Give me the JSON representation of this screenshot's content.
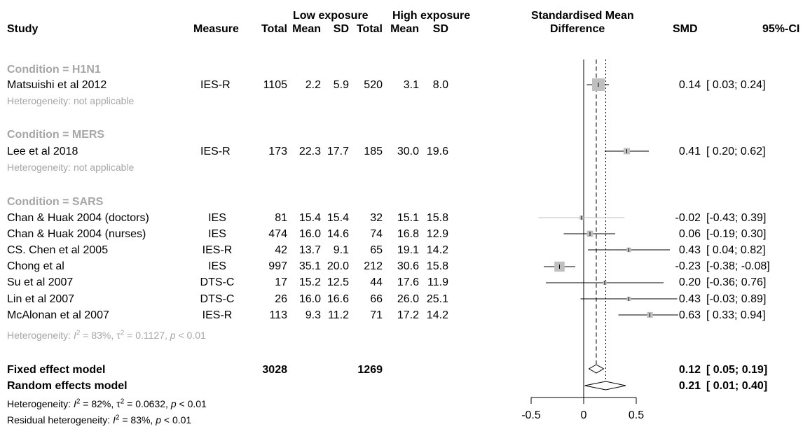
{
  "header": {
    "study": "Study",
    "measure": "Measure",
    "low_exposure": "Low exposure",
    "high_exposure": "High exposure",
    "total": "Total",
    "mean": "Mean",
    "sd": "SD",
    "smd_title_line1": "Standardised Mean",
    "smd_title_line2": "Difference",
    "smd": "SMD",
    "ci": "95%-CI"
  },
  "groups": [
    {
      "label": "Condition = H1N1",
      "heterogeneity": "Heterogeneity: not applicable",
      "studies": [
        {
          "study": "Matsuishi et al 2012",
          "measure": "IES-R",
          "n1": "1105",
          "m1": "2.2",
          "sd1": "5.9",
          "n2": "520",
          "m2": "3.1",
          "sd2": "8.0",
          "smd": "0.14",
          "ci": "[ 0.03; 0.24]"
        }
      ]
    },
    {
      "label": "Condition = MERS",
      "heterogeneity": "Heterogeneity: not applicable",
      "studies": [
        {
          "study": "Lee et al 2018",
          "measure": "IES-R",
          "n1": "173",
          "m1": "22.3",
          "sd1": "17.7",
          "n2": "185",
          "m2": "30.0",
          "sd2": "19.6",
          "smd": "0.41",
          "ci": "[ 0.20; 0.62]"
        }
      ]
    },
    {
      "label": "Condition = SARS",
      "heterogeneity_parts": {
        "prefix": "Heterogeneity: ",
        "i2": "I",
        "i2_sup": "2",
        "i2_val": " = 83%, ",
        "tau": "τ",
        "tau_sup": "2",
        "tau_val": " = 0.1127, ",
        "p": "p",
        "p_val": " < 0.01"
      },
      "studies": [
        {
          "study": "Chan & Huak 2004 (doctors)",
          "measure": "IES",
          "n1": "81",
          "m1": "15.4",
          "sd1": "15.4",
          "n2": "32",
          "m2": "15.1",
          "sd2": "15.8",
          "smd": "-0.02",
          "ci": "[-0.43; 0.39]"
        },
        {
          "study": "Chan & Huak 2004 (nurses)",
          "measure": "IES",
          "n1": "474",
          "m1": "16.0",
          "sd1": "14.6",
          "n2": "74",
          "m2": "16.8",
          "sd2": "12.9",
          "smd": "0.06",
          "ci": "[-0.19; 0.30]"
        },
        {
          "study": "CS. Chen et al 2005",
          "measure": "IES-R",
          "n1": "42",
          "m1": "13.7",
          "sd1": "9.1",
          "n2": "65",
          "m2": "19.1",
          "sd2": "14.2",
          "smd": "0.43",
          "ci": "[ 0.04; 0.82]"
        },
        {
          "study": "Chong et al",
          "measure": "IES",
          "n1": "997",
          "m1": "35.1",
          "sd1": "20.0",
          "n2": "212",
          "m2": "30.6",
          "sd2": "15.8",
          "smd": "-0.23",
          "ci": "[-0.38; -0.08]"
        },
        {
          "study": "Su et al 2007",
          "measure": "DTS-C",
          "n1": "17",
          "m1": "15.2",
          "sd1": "12.5",
          "n2": "44",
          "m2": "17.6",
          "sd2": "11.9",
          "smd": "0.20",
          "ci": "[-0.36; 0.76]"
        },
        {
          "study": "Lin et al 2007",
          "measure": "DTS-C",
          "n1": "26",
          "m1": "16.0",
          "sd1": "16.6",
          "n2": "66",
          "m2": "26.0",
          "sd2": "25.1",
          "smd": "0.43",
          "ci": "[-0.03; 0.89]"
        },
        {
          "study": "McAlonan et al 2007",
          "measure": "IES-R",
          "n1": "113",
          "m1": "9.3",
          "sd1": "11.2",
          "n2": "71",
          "m2": "17.2",
          "sd2": "14.2",
          "smd": "0.63",
          "ci": "[ 0.33; 0.94]"
        }
      ]
    }
  ],
  "fixed": {
    "label": "Fixed effect model",
    "n1": "3028",
    "n2": "1269",
    "smd": "0.12",
    "ci": "[ 0.05; 0.19]"
  },
  "random": {
    "label": "Random effects model",
    "smd": "0.21",
    "ci": "[ 0.01; 0.40]"
  },
  "overall_het": {
    "prefix": "Heterogeneity: ",
    "i2": "I",
    "i2_sup": "2",
    "i2_val": " = 82%, ",
    "tau": "τ",
    "tau_sup": "2",
    "tau_val": " = 0.0632, ",
    "p": "p",
    "p_val": " < 0.01"
  },
  "residual_het": {
    "prefix": "Residual heterogeneity: ",
    "i2": "I",
    "i2_sup": "2",
    "i2_val": " = 83%, ",
    "p": "p",
    "p_val": " < 0.01"
  },
  "chart_data": {
    "type": "forest",
    "xlim": [
      -0.5,
      0.5
    ],
    "ticks": [
      "-0.5",
      "0",
      "0.5"
    ],
    "tick_values": [
      -0.5,
      0,
      0.5
    ],
    "points": [
      {
        "study": "Matsuishi et al 2012",
        "smd": 0.14,
        "lower": 0.03,
        "upper": 0.24,
        "weight": 1.0
      },
      {
        "study": "Lee et al 2018",
        "smd": 0.41,
        "lower": 0.2,
        "upper": 0.62,
        "weight": 0.35
      },
      {
        "study": "Chan & Huak 2004 (doctors)",
        "smd": -0.02,
        "lower": -0.43,
        "upper": 0.39,
        "weight": 0.12
      },
      {
        "study": "Chan & Huak 2004 (nurses)",
        "smd": 0.06,
        "lower": -0.19,
        "upper": 0.3,
        "weight": 0.35
      },
      {
        "study": "CS. Chen et al 2005",
        "smd": 0.43,
        "lower": 0.04,
        "upper": 0.82,
        "weight": 0.18
      },
      {
        "study": "Chong et al",
        "smd": -0.23,
        "lower": -0.38,
        "upper": -0.08,
        "weight": 0.75
      },
      {
        "study": "Su et al 2007",
        "smd": 0.2,
        "lower": -0.36,
        "upper": 0.76,
        "weight": 0.1
      },
      {
        "study": "Lin et al 2007",
        "smd": 0.43,
        "lower": -0.03,
        "upper": 0.89,
        "weight": 0.15
      },
      {
        "study": "McAlonan et al 2007",
        "smd": 0.63,
        "lower": 0.33,
        "upper": 0.94,
        "weight": 0.3
      }
    ],
    "fixed": {
      "smd": 0.12,
      "lower": 0.05,
      "upper": 0.19
    },
    "random": {
      "smd": 0.21,
      "lower": 0.01,
      "upper": 0.4
    }
  }
}
